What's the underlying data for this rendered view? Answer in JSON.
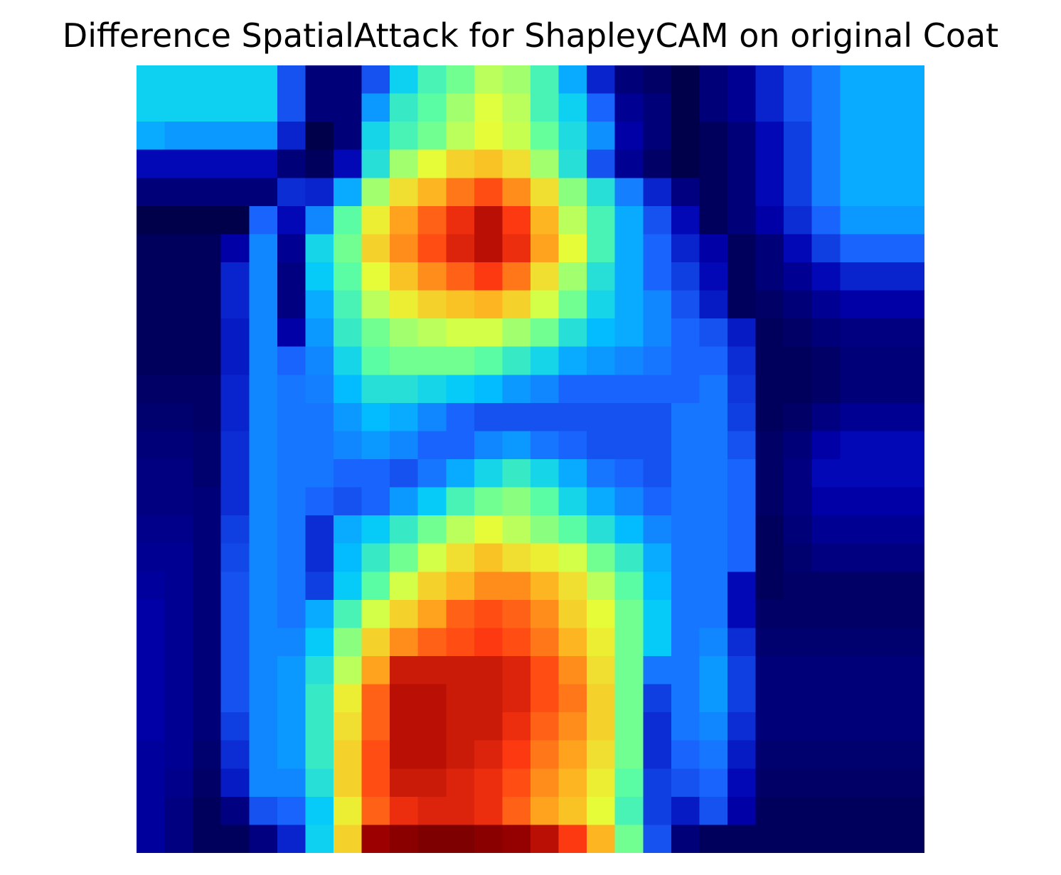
{
  "title": "Difference SpatialAttack for ShapleyCAM on original Coat",
  "colormap": [
    "#00004a",
    "#0000b0",
    "#1a66ff",
    "#00c8ff",
    "#5effa0",
    "#e6ff3a",
    "#ffb020",
    "#ff3a12",
    "#a00000",
    "#780000"
  ],
  "chart_data": {
    "type": "heatmap",
    "rows": 28,
    "cols": 28,
    "grid": false,
    "axes_visible": false,
    "values": [
      [
        0.35,
        0.35,
        0.35,
        0.35,
        0.35,
        0.2,
        0.05,
        0.05,
        0.2,
        0.35,
        0.42,
        0.46,
        0.52,
        0.5,
        0.42,
        0.3,
        0.15,
        0.05,
        0.03,
        0.0,
        0.05,
        0.08,
        0.15,
        0.2,
        0.25,
        0.3,
        0.3,
        0.3
      ],
      [
        0.35,
        0.35,
        0.35,
        0.35,
        0.35,
        0.2,
        0.05,
        0.05,
        0.28,
        0.4,
        0.44,
        0.5,
        0.55,
        0.52,
        0.42,
        0.35,
        0.22,
        0.08,
        0.05,
        0.0,
        0.05,
        0.08,
        0.15,
        0.2,
        0.25,
        0.3,
        0.3,
        0.3
      ],
      [
        0.3,
        0.28,
        0.28,
        0.28,
        0.28,
        0.15,
        0.0,
        0.05,
        0.36,
        0.42,
        0.46,
        0.52,
        0.56,
        0.53,
        0.45,
        0.37,
        0.27,
        0.1,
        0.05,
        0.0,
        0.02,
        0.05,
        0.12,
        0.18,
        0.25,
        0.3,
        0.3,
        0.3
      ],
      [
        0.12,
        0.12,
        0.12,
        0.12,
        0.12,
        0.05,
        0.02,
        0.12,
        0.38,
        0.5,
        0.56,
        0.62,
        0.64,
        0.6,
        0.5,
        0.38,
        0.2,
        0.08,
        0.03,
        0.0,
        0.02,
        0.05,
        0.12,
        0.18,
        0.25,
        0.3,
        0.3,
        0.3
      ],
      [
        0.05,
        0.05,
        0.05,
        0.05,
        0.05,
        0.16,
        0.15,
        0.3,
        0.5,
        0.6,
        0.66,
        0.72,
        0.76,
        0.7,
        0.6,
        0.48,
        0.38,
        0.25,
        0.15,
        0.06,
        0.02,
        0.05,
        0.12,
        0.18,
        0.25,
        0.3,
        0.3,
        0.3
      ],
      [
        0.0,
        0.0,
        0.0,
        0.0,
        0.22,
        0.12,
        0.26,
        0.44,
        0.58,
        0.68,
        0.74,
        0.8,
        0.86,
        0.78,
        0.66,
        0.52,
        0.42,
        0.3,
        0.2,
        0.12,
        0.02,
        0.05,
        0.1,
        0.16,
        0.22,
        0.28,
        0.28,
        0.28
      ],
      [
        0.02,
        0.02,
        0.02,
        0.1,
        0.26,
        0.08,
        0.36,
        0.46,
        0.62,
        0.7,
        0.76,
        0.82,
        0.86,
        0.8,
        0.68,
        0.56,
        0.42,
        0.3,
        0.22,
        0.15,
        0.1,
        0.02,
        0.05,
        0.12,
        0.18,
        0.22,
        0.22,
        0.22
      ],
      [
        0.02,
        0.02,
        0.02,
        0.15,
        0.26,
        0.06,
        0.34,
        0.44,
        0.56,
        0.64,
        0.7,
        0.74,
        0.78,
        0.72,
        0.6,
        0.5,
        0.38,
        0.3,
        0.22,
        0.18,
        0.12,
        0.02,
        0.05,
        0.08,
        0.12,
        0.15,
        0.15,
        0.15
      ],
      [
        0.02,
        0.02,
        0.02,
        0.15,
        0.26,
        0.06,
        0.3,
        0.42,
        0.52,
        0.58,
        0.62,
        0.64,
        0.66,
        0.62,
        0.54,
        0.46,
        0.36,
        0.3,
        0.26,
        0.2,
        0.14,
        0.02,
        0.03,
        0.05,
        0.08,
        0.1,
        0.1,
        0.1
      ],
      [
        0.02,
        0.02,
        0.02,
        0.14,
        0.26,
        0.1,
        0.28,
        0.4,
        0.46,
        0.5,
        0.52,
        0.54,
        0.54,
        0.5,
        0.46,
        0.38,
        0.32,
        0.3,
        0.26,
        0.22,
        0.2,
        0.14,
        0.02,
        0.03,
        0.05,
        0.06,
        0.06,
        0.06
      ],
      [
        0.02,
        0.02,
        0.02,
        0.14,
        0.26,
        0.22,
        0.26,
        0.36,
        0.44,
        0.46,
        0.46,
        0.46,
        0.44,
        0.4,
        0.36,
        0.3,
        0.28,
        0.26,
        0.24,
        0.22,
        0.22,
        0.16,
        0.02,
        0.02,
        0.03,
        0.05,
        0.05,
        0.05
      ],
      [
        0.03,
        0.03,
        0.03,
        0.15,
        0.26,
        0.24,
        0.25,
        0.32,
        0.38,
        0.38,
        0.36,
        0.34,
        0.32,
        0.28,
        0.26,
        0.22,
        0.22,
        0.22,
        0.22,
        0.22,
        0.24,
        0.17,
        0.02,
        0.02,
        0.03,
        0.05,
        0.05,
        0.05
      ],
      [
        0.04,
        0.04,
        0.03,
        0.15,
        0.26,
        0.24,
        0.24,
        0.28,
        0.32,
        0.3,
        0.26,
        0.22,
        0.2,
        0.2,
        0.2,
        0.2,
        0.2,
        0.2,
        0.2,
        0.24,
        0.24,
        0.18,
        0.02,
        0.03,
        0.06,
        0.08,
        0.08,
        0.08
      ],
      [
        0.05,
        0.05,
        0.04,
        0.16,
        0.26,
        0.24,
        0.24,
        0.26,
        0.28,
        0.26,
        0.22,
        0.22,
        0.26,
        0.28,
        0.24,
        0.22,
        0.2,
        0.2,
        0.2,
        0.24,
        0.24,
        0.2,
        0.03,
        0.05,
        0.1,
        0.12,
        0.12,
        0.12
      ],
      [
        0.06,
        0.06,
        0.04,
        0.16,
        0.26,
        0.24,
        0.24,
        0.22,
        0.22,
        0.2,
        0.24,
        0.3,
        0.36,
        0.4,
        0.36,
        0.3,
        0.24,
        0.22,
        0.2,
        0.24,
        0.24,
        0.22,
        0.03,
        0.06,
        0.12,
        0.12,
        0.12,
        0.12
      ],
      [
        0.06,
        0.06,
        0.05,
        0.16,
        0.26,
        0.24,
        0.22,
        0.2,
        0.22,
        0.28,
        0.34,
        0.42,
        0.46,
        0.48,
        0.44,
        0.36,
        0.3,
        0.26,
        0.22,
        0.24,
        0.24,
        0.22,
        0.03,
        0.06,
        0.1,
        0.1,
        0.1,
        0.1
      ],
      [
        0.07,
        0.07,
        0.05,
        0.18,
        0.26,
        0.24,
        0.16,
        0.3,
        0.34,
        0.4,
        0.46,
        0.52,
        0.56,
        0.52,
        0.48,
        0.44,
        0.38,
        0.32,
        0.26,
        0.24,
        0.24,
        0.22,
        0.02,
        0.05,
        0.08,
        0.08,
        0.08,
        0.08
      ],
      [
        0.08,
        0.08,
        0.05,
        0.19,
        0.26,
        0.24,
        0.16,
        0.32,
        0.4,
        0.46,
        0.54,
        0.6,
        0.64,
        0.6,
        0.58,
        0.54,
        0.46,
        0.4,
        0.3,
        0.24,
        0.24,
        0.22,
        0.02,
        0.04,
        0.06,
        0.06,
        0.06,
        0.06
      ],
      [
        0.09,
        0.08,
        0.05,
        0.2,
        0.26,
        0.24,
        0.18,
        0.34,
        0.44,
        0.54,
        0.62,
        0.66,
        0.7,
        0.7,
        0.66,
        0.6,
        0.52,
        0.44,
        0.32,
        0.24,
        0.24,
        0.12,
        0.02,
        0.03,
        0.03,
        0.03,
        0.03,
        0.03
      ],
      [
        0.1,
        0.08,
        0.05,
        0.2,
        0.26,
        0.24,
        0.3,
        0.42,
        0.54,
        0.62,
        0.68,
        0.74,
        0.76,
        0.74,
        0.7,
        0.62,
        0.56,
        0.46,
        0.34,
        0.24,
        0.24,
        0.12,
        0.03,
        0.03,
        0.03,
        0.03,
        0.03,
        0.03
      ],
      [
        0.1,
        0.08,
        0.05,
        0.2,
        0.26,
        0.26,
        0.34,
        0.48,
        0.62,
        0.7,
        0.74,
        0.76,
        0.78,
        0.76,
        0.72,
        0.66,
        0.58,
        0.46,
        0.34,
        0.24,
        0.26,
        0.16,
        0.04,
        0.04,
        0.04,
        0.04,
        0.04,
        0.04
      ],
      [
        0.1,
        0.08,
        0.05,
        0.2,
        0.26,
        0.28,
        0.38,
        0.52,
        0.68,
        0.84,
        0.84,
        0.84,
        0.84,
        0.82,
        0.76,
        0.7,
        0.6,
        0.46,
        0.24,
        0.24,
        0.28,
        0.18,
        0.05,
        0.05,
        0.05,
        0.05,
        0.05,
        0.05
      ],
      [
        0.1,
        0.08,
        0.05,
        0.2,
        0.26,
        0.28,
        0.4,
        0.58,
        0.74,
        0.86,
        0.86,
        0.84,
        0.84,
        0.82,
        0.76,
        0.72,
        0.62,
        0.46,
        0.18,
        0.24,
        0.28,
        0.18,
        0.05,
        0.05,
        0.05,
        0.05,
        0.05,
        0.05
      ],
      [
        0.1,
        0.08,
        0.05,
        0.18,
        0.26,
        0.28,
        0.4,
        0.6,
        0.74,
        0.86,
        0.86,
        0.84,
        0.84,
        0.8,
        0.74,
        0.7,
        0.62,
        0.46,
        0.16,
        0.24,
        0.26,
        0.16,
        0.05,
        0.05,
        0.05,
        0.05,
        0.05,
        0.05
      ],
      [
        0.09,
        0.08,
        0.04,
        0.16,
        0.26,
        0.28,
        0.4,
        0.62,
        0.76,
        0.86,
        0.86,
        0.84,
        0.82,
        0.78,
        0.72,
        0.68,
        0.6,
        0.46,
        0.16,
        0.22,
        0.24,
        0.14,
        0.04,
        0.04,
        0.04,
        0.04,
        0.04,
        0.04
      ],
      [
        0.09,
        0.07,
        0.03,
        0.14,
        0.26,
        0.26,
        0.38,
        0.62,
        0.76,
        0.84,
        0.84,
        0.82,
        0.8,
        0.76,
        0.7,
        0.66,
        0.58,
        0.44,
        0.18,
        0.2,
        0.22,
        0.12,
        0.03,
        0.03,
        0.03,
        0.03,
        0.03,
        0.03
      ],
      [
        0.09,
        0.06,
        0.02,
        0.06,
        0.2,
        0.22,
        0.34,
        0.58,
        0.74,
        0.8,
        0.82,
        0.82,
        0.8,
        0.74,
        0.68,
        0.64,
        0.56,
        0.42,
        0.18,
        0.14,
        0.2,
        0.1,
        0.02,
        0.02,
        0.02,
        0.02,
        0.02,
        0.02
      ],
      [
        0.09,
        0.06,
        0.02,
        0.02,
        0.06,
        0.15,
        0.35,
        0.62,
        0.9,
        0.95,
        0.98,
        0.98,
        0.95,
        0.92,
        0.86,
        0.78,
        0.66,
        0.46,
        0.2,
        0.05,
        0.02,
        0.02,
        0.02,
        0.02,
        0.02,
        0.02,
        0.02,
        0.02
      ]
    ]
  }
}
